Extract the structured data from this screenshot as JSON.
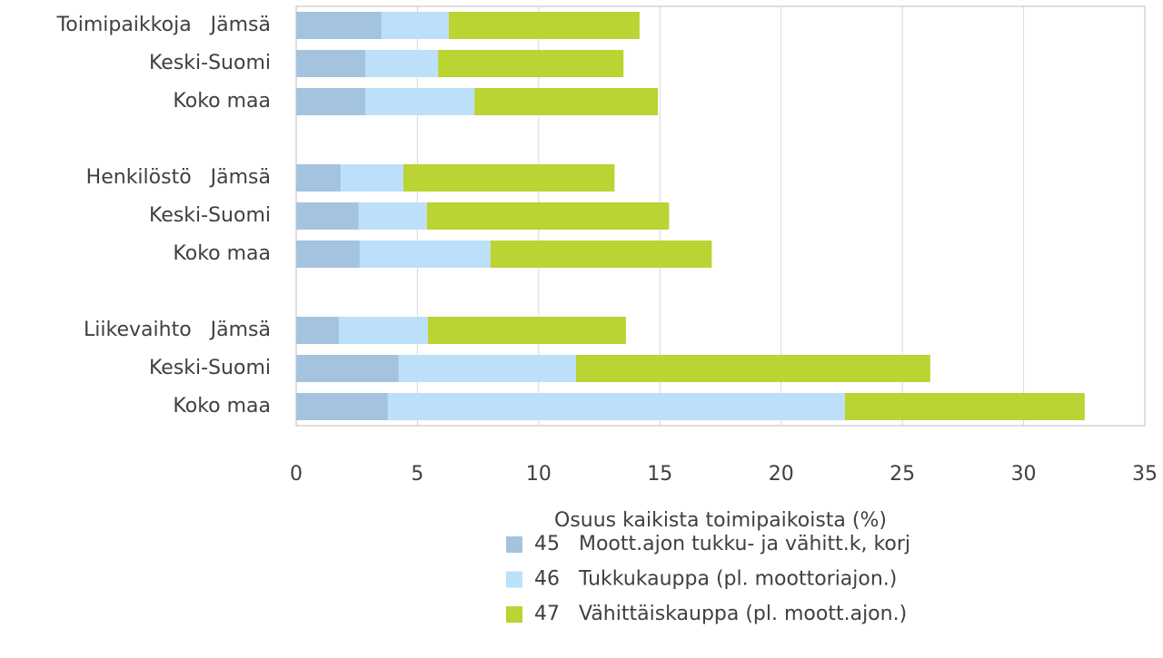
{
  "chart_data": {
    "type": "stacked-barh",
    "categories": [
      "Toimipaikkoja   Jämsä",
      "Keski-Suomi",
      "Koko maa",
      null,
      "Henkilöstö   Jämsä",
      "Keski-Suomi",
      "Koko maa",
      null,
      "Liikevaihto   Jämsä",
      "Keski-Suomi",
      "Koko maa"
    ],
    "series": [
      {
        "name": "45   Moott.ajon tukku- ja vähitt.k, korj",
        "color": "#a4c3de",
        "values": [
          3.52,
          2.85,
          2.85,
          null,
          1.84,
          2.58,
          2.62,
          null,
          1.76,
          4.23,
          3.78
        ]
      },
      {
        "name": "46   Tukkukauppa (pl. moottoriajon.)",
        "color": "#bde0fa",
        "values": [
          2.77,
          3.0,
          4.5,
          null,
          2.58,
          2.81,
          5.39,
          null,
          3.67,
          7.31,
          18.85
        ]
      },
      {
        "name": "47   Vähittäiskauppa (pl. moott.ajon.)",
        "color": "#bbd333",
        "values": [
          7.87,
          7.65,
          7.57,
          null,
          8.71,
          9.99,
          9.13,
          null,
          8.17,
          14.61,
          9.89
        ]
      }
    ],
    "xlabel": "Osuus kaikista toimipaikoista (%)",
    "xlim": [
      0,
      35
    ],
    "xticks": [
      0,
      5,
      10,
      15,
      20,
      25,
      30,
      35
    ],
    "grid": true
  }
}
